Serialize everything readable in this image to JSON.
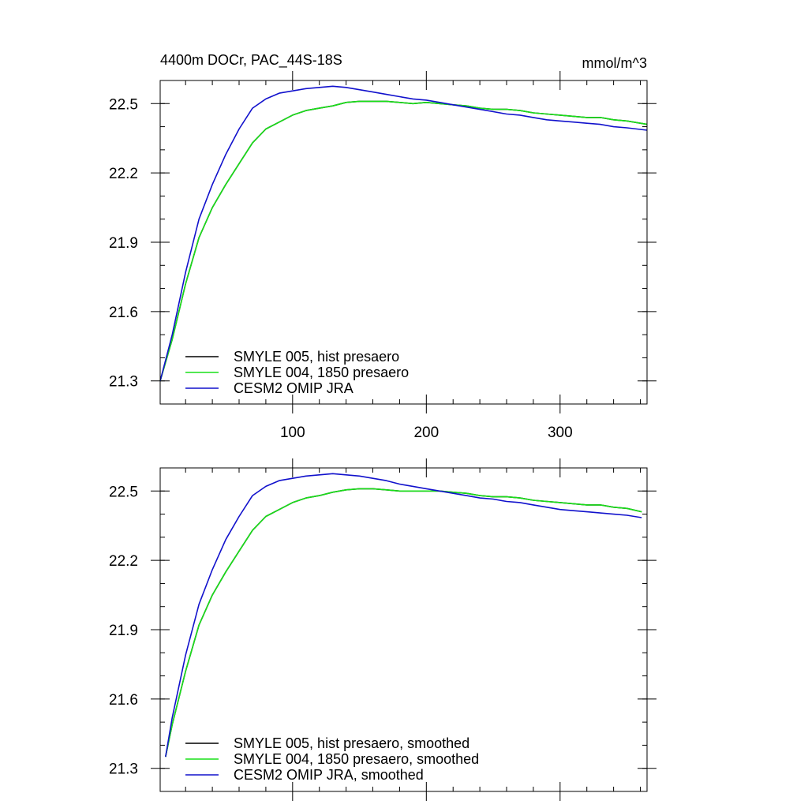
{
  "chart_data": [
    {
      "type": "line",
      "title": "4400m DOCr, PAC_44S-18S",
      "units_label": "mmol/m^3",
      "xlim": [
        1,
        365
      ],
      "ylim": [
        21.2,
        22.6
      ],
      "x_ticks": [
        100,
        200,
        300
      ],
      "x_tick_labels": [
        "100",
        "200",
        "300"
      ],
      "y_ticks": [
        21.3,
        21.6,
        21.9,
        22.2,
        22.5
      ],
      "y_tick_labels": [
        "21.3",
        "21.6",
        "21.9",
        "22.2",
        "22.5"
      ],
      "legend_position": "bottom-left",
      "series": [
        {
          "name": "SMYLE 005, hist presaero",
          "color": "#000000",
          "x": [
            1,
            10,
            20,
            30,
            40,
            50,
            60,
            70,
            80,
            90,
            100,
            110,
            120,
            130,
            140,
            150,
            160,
            170,
            180,
            190,
            200,
            210,
            220,
            230,
            240,
            250,
            260,
            270,
            280,
            290,
            300,
            310,
            320,
            330,
            340,
            350,
            365
          ],
          "y": [
            21.3,
            21.48,
            21.72,
            21.92,
            22.05,
            22.15,
            22.24,
            22.33,
            22.39,
            22.42,
            22.45,
            22.47,
            22.48,
            22.49,
            22.505,
            22.51,
            22.51,
            22.51,
            22.505,
            22.5,
            22.505,
            22.5,
            22.495,
            22.49,
            22.48,
            22.475,
            22.475,
            22.47,
            22.46,
            22.455,
            22.45,
            22.445,
            22.44,
            22.44,
            22.43,
            22.425,
            22.41
          ]
        },
        {
          "name": "SMYLE 004, 1850 presaero",
          "color": "#19e019",
          "x": [
            1,
            10,
            20,
            30,
            40,
            50,
            60,
            70,
            80,
            90,
            100,
            110,
            120,
            130,
            140,
            150,
            160,
            170,
            180,
            190,
            200,
            210,
            220,
            230,
            240,
            250,
            260,
            270,
            280,
            290,
            300,
            310,
            320,
            330,
            340,
            350,
            365
          ],
          "y": [
            21.3,
            21.48,
            21.72,
            21.92,
            22.05,
            22.15,
            22.24,
            22.33,
            22.39,
            22.42,
            22.45,
            22.47,
            22.48,
            22.49,
            22.505,
            22.51,
            22.51,
            22.51,
            22.505,
            22.5,
            22.505,
            22.5,
            22.495,
            22.49,
            22.48,
            22.475,
            22.475,
            22.47,
            22.46,
            22.455,
            22.45,
            22.445,
            22.44,
            22.44,
            22.43,
            22.425,
            22.41
          ]
        },
        {
          "name": "CESM2 OMIP JRA",
          "color": "#1111cc",
          "x": [
            1,
            10,
            20,
            30,
            40,
            50,
            60,
            70,
            80,
            90,
            100,
            110,
            120,
            130,
            140,
            150,
            160,
            170,
            180,
            190,
            200,
            210,
            220,
            230,
            240,
            250,
            260,
            270,
            280,
            290,
            300,
            310,
            320,
            330,
            340,
            350,
            365
          ],
          "y": [
            21.3,
            21.5,
            21.77,
            22.0,
            22.15,
            22.28,
            22.39,
            22.48,
            22.52,
            22.545,
            22.555,
            22.565,
            22.57,
            22.575,
            22.57,
            22.56,
            22.55,
            22.54,
            22.53,
            22.52,
            22.515,
            22.505,
            22.495,
            22.485,
            22.475,
            22.465,
            22.455,
            22.45,
            22.44,
            22.43,
            22.425,
            22.42,
            22.415,
            22.41,
            22.4,
            22.395,
            22.385
          ]
        }
      ]
    },
    {
      "type": "line",
      "title": "",
      "xlim": [
        1,
        365
      ],
      "ylim": [
        21.2,
        22.6
      ],
      "x_ticks": [
        100,
        200,
        300
      ],
      "y_ticks": [
        21.3,
        21.6,
        21.9,
        22.2,
        22.5
      ],
      "y_tick_labels": [
        "21.3",
        "21.6",
        "21.9",
        "22.2",
        "22.5"
      ],
      "legend_position": "bottom-left",
      "series": [
        {
          "name": "SMYLE 005, hist presaero, smoothed",
          "color": "#000000",
          "x": [
            5,
            10,
            20,
            30,
            40,
            50,
            60,
            70,
            80,
            90,
            100,
            110,
            120,
            130,
            140,
            150,
            160,
            170,
            180,
            190,
            200,
            210,
            220,
            230,
            240,
            250,
            260,
            270,
            280,
            290,
            300,
            310,
            320,
            330,
            340,
            350,
            361
          ],
          "y": [
            21.35,
            21.49,
            21.72,
            21.92,
            22.05,
            22.15,
            22.24,
            22.33,
            22.39,
            22.42,
            22.45,
            22.47,
            22.48,
            22.495,
            22.505,
            22.51,
            22.51,
            22.505,
            22.5,
            22.5,
            22.5,
            22.5,
            22.495,
            22.49,
            22.48,
            22.475,
            22.475,
            22.47,
            22.46,
            22.455,
            22.45,
            22.445,
            22.44,
            22.44,
            22.43,
            22.425,
            22.41
          ]
        },
        {
          "name": "SMYLE 004, 1850 presaero, smoothed",
          "color": "#19e019",
          "x": [
            5,
            10,
            20,
            30,
            40,
            50,
            60,
            70,
            80,
            90,
            100,
            110,
            120,
            130,
            140,
            150,
            160,
            170,
            180,
            190,
            200,
            210,
            220,
            230,
            240,
            250,
            260,
            270,
            280,
            290,
            300,
            310,
            320,
            330,
            340,
            350,
            361
          ],
          "y": [
            21.35,
            21.49,
            21.72,
            21.92,
            22.05,
            22.15,
            22.24,
            22.33,
            22.39,
            22.42,
            22.45,
            22.47,
            22.48,
            22.495,
            22.505,
            22.51,
            22.51,
            22.505,
            22.5,
            22.5,
            22.5,
            22.5,
            22.495,
            22.49,
            22.48,
            22.475,
            22.475,
            22.47,
            22.46,
            22.455,
            22.45,
            22.445,
            22.44,
            22.44,
            22.43,
            22.425,
            22.41
          ]
        },
        {
          "name": "CESM2 OMIP JRA, smoothed",
          "color": "#1111cc",
          "x": [
            5,
            10,
            20,
            30,
            40,
            50,
            60,
            70,
            80,
            90,
            100,
            110,
            120,
            130,
            140,
            150,
            160,
            170,
            180,
            190,
            200,
            210,
            220,
            230,
            240,
            250,
            260,
            270,
            280,
            290,
            300,
            310,
            320,
            330,
            340,
            350,
            361
          ],
          "y": [
            21.35,
            21.52,
            21.79,
            22.01,
            22.16,
            22.29,
            22.39,
            22.48,
            22.52,
            22.545,
            22.555,
            22.565,
            22.57,
            22.575,
            22.57,
            22.565,
            22.555,
            22.545,
            22.53,
            22.52,
            22.51,
            22.5,
            22.49,
            22.48,
            22.47,
            22.465,
            22.455,
            22.45,
            22.44,
            22.43,
            22.42,
            22.415,
            22.41,
            22.405,
            22.4,
            22.395,
            22.385
          ]
        }
      ]
    }
  ]
}
